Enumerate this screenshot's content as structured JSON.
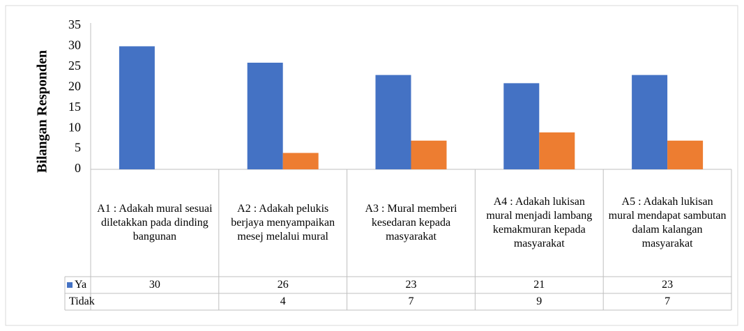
{
  "chart_data": {
    "type": "bar",
    "y_label": "Bilangan Responden",
    "categories": [
      "A1 : Adakah mural sesuai diletakkan pada dinding bangunan",
      "A2 : Adakah pelukis berjaya menyampaikan mesej melalui mural",
      "A3 : Mural memberi kesedaran kepada masyarakat",
      "A4 : Adakah lukisan mural menjadi lambang kemakmuran kepada masyarakat",
      "A5 : Adakah lukisan mural mendapat sambutan dalam kalangan masyarakat"
    ],
    "series": [
      {
        "name": "Ya",
        "color": "#4472c4",
        "values": [
          30,
          26,
          23,
          21,
          23
        ]
      },
      {
        "name": "Tidak",
        "color": "#ed7d31",
        "values": [
          null,
          4,
          7,
          9,
          7
        ]
      }
    ],
    "ylim": [
      0,
      35
    ],
    "yticks": [
      0,
      5,
      10,
      15,
      20,
      25,
      30,
      35
    ],
    "grid": false
  }
}
